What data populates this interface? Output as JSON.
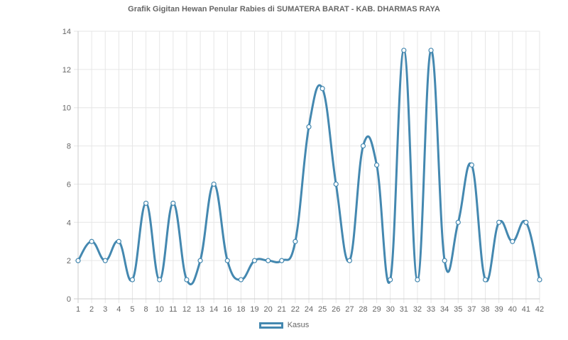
{
  "chart_data": {
    "type": "line",
    "title": "Grafik Gigitan Hewan Penular Rabies di SUMATERA BARAT - KAB. DHARMAS RAYA",
    "xlabel": "",
    "ylabel": "",
    "ylim": [
      0,
      14
    ],
    "yticks": [
      0,
      2,
      4,
      6,
      8,
      10,
      12,
      14
    ],
    "grid": true,
    "legend_position": "bottom",
    "categories": [
      "1",
      "2",
      "3",
      "4",
      "5",
      "8",
      "10",
      "11",
      "12",
      "13",
      "14",
      "16",
      "18",
      "19",
      "20",
      "21",
      "22",
      "24",
      "25",
      "26",
      "27",
      "28",
      "29",
      "30",
      "31",
      "32",
      "33",
      "34",
      "35",
      "37",
      "38",
      "39",
      "40",
      "41",
      "42"
    ],
    "series": [
      {
        "name": "Kasus",
        "color": "#4488b0",
        "values": [
          2,
          3,
          2,
          3,
          1,
          5,
          1,
          5,
          1,
          2,
          6,
          2,
          1,
          2,
          2,
          2,
          3,
          9,
          11,
          6,
          2,
          8,
          7,
          1,
          13,
          1,
          13,
          2,
          4,
          7,
          1,
          4,
          3,
          4,
          1
        ]
      }
    ]
  }
}
